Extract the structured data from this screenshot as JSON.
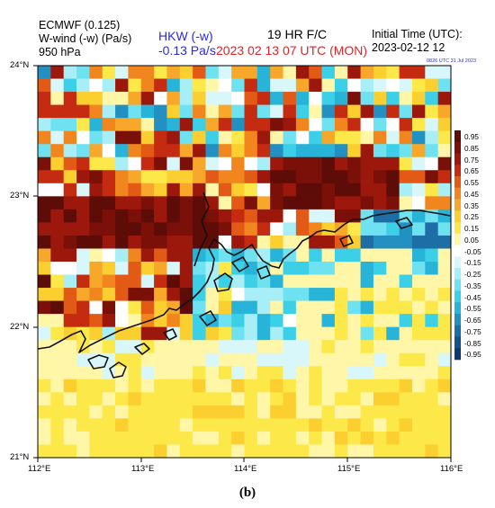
{
  "header": {
    "model": "ECMWF (0.125)",
    "variable": "W-wind (-w) (Pa/s)",
    "level": "950 hPa",
    "station_label": "HKW (-w)",
    "station_value": "-0.13 Pa/s",
    "forecast": "19 HR F/C",
    "valid_time": "2023 02 13  07 UTC (MON)",
    "init_label": "Initial Time (UTC):",
    "init_value": "2023-02-12  12",
    "stamp": "0826 UTC 31 Jul 2023"
  },
  "axes": {
    "y_ticks": [
      "24°N",
      "23°N",
      "22°N",
      "21°N"
    ],
    "x_ticks": [
      "112°E",
      "113°E",
      "114°E",
      "115°E",
      "116°E"
    ]
  },
  "colorbar": {
    "labels": [
      "0.95",
      "0.85",
      "0.75",
      "0.65",
      "0.55",
      "0.45",
      "0.35",
      "0.25",
      "0.15",
      "0.05",
      "-0.05",
      "-0.15",
      "-0.25",
      "-0.35",
      "-0.45",
      "-0.55",
      "-0.65",
      "-0.75",
      "-0.85",
      "-0.95"
    ],
    "colors": [
      "#5e0c07",
      "#7a1008",
      "#9c180c",
      "#c52b11",
      "#e25a16",
      "#f0861d",
      "#f7a82a",
      "#fbcf2f",
      "#fde84a",
      "#fff6a8",
      "#ffffff",
      "#d8f7fb",
      "#a8eef7",
      "#6ee2f1",
      "#3ccfe8",
      "#28b4d8",
      "#2290c0",
      "#1c6ea5",
      "#16528a",
      "#103a6e"
    ]
  },
  "caption": "(b)"
}
